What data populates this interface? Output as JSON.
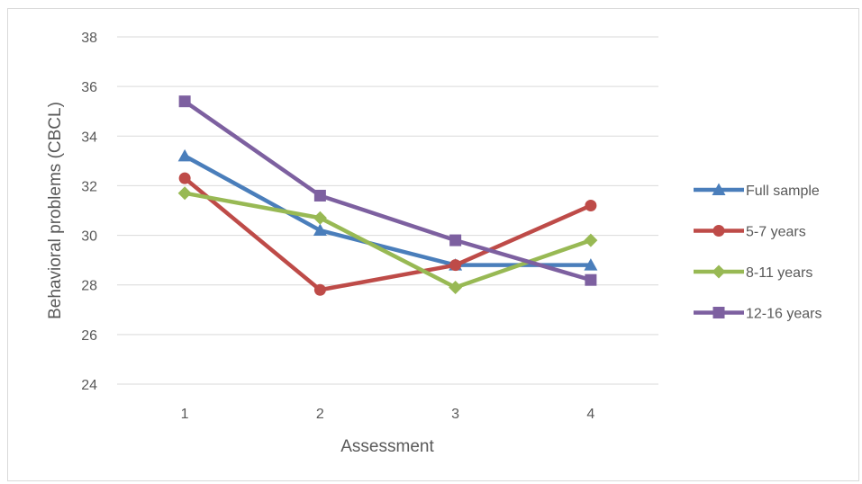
{
  "chart_data": {
    "type": "line",
    "categories": [
      "1",
      "2",
      "3",
      "4"
    ],
    "xlabel": "Assessment",
    "ylabel": "Behavioral problems (CBCL)",
    "ylim": [
      24,
      38
    ],
    "yticks": [
      "24",
      "26",
      "28",
      "30",
      "32",
      "34",
      "36",
      "38"
    ],
    "grid": true,
    "legend_position": "right",
    "series": [
      {
        "name": "Full sample",
        "color": "#4a7ebb",
        "marker": "triangle",
        "values": [
          33.2,
          30.2,
          28.8,
          28.8
        ]
      },
      {
        "name": "5-7 years",
        "color": "#be4b48",
        "marker": "circle",
        "values": [
          32.3,
          27.8,
          28.8,
          31.2
        ]
      },
      {
        "name": "8-11 years",
        "color": "#98b954",
        "marker": "diamond",
        "values": [
          31.7,
          30.7,
          27.9,
          29.8
        ]
      },
      {
        "name": "12-16 years",
        "color": "#7d60a0",
        "marker": "square",
        "values": [
          35.4,
          31.6,
          29.8,
          28.2
        ]
      }
    ]
  }
}
